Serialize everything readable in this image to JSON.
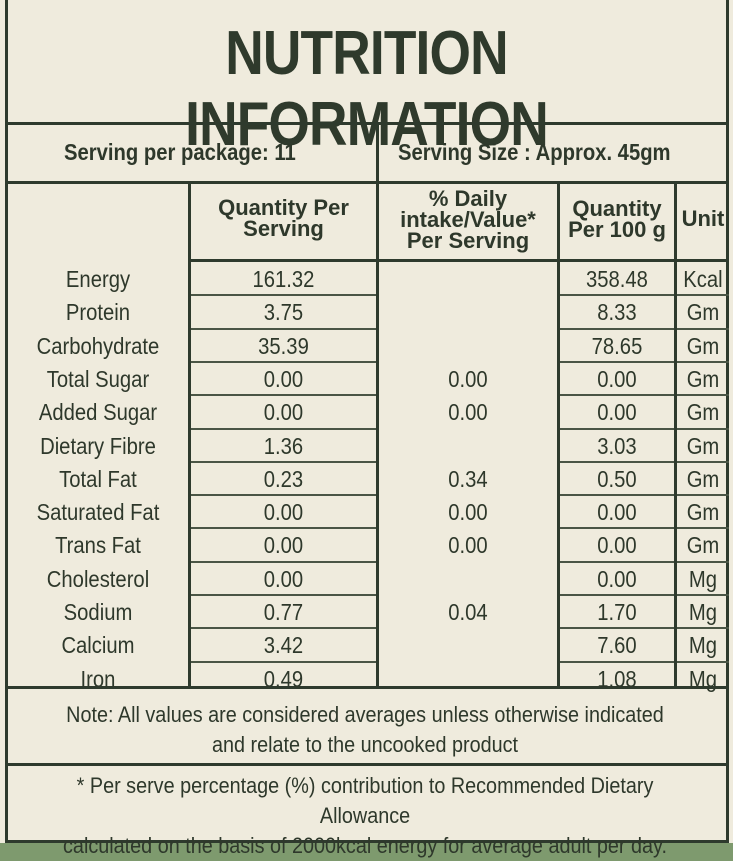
{
  "title": "NUTRITION INFORMATION",
  "serving": {
    "per_package": "Serving per package: 11",
    "size": "Serving Size : Approx. 45gm"
  },
  "columns": {
    "quantity_per_serving": [
      "Quantity Per",
      "Serving"
    ],
    "daily_value": [
      "% Daily",
      "intake/Value*",
      "Per Serving"
    ],
    "per_100g": [
      "Quantity",
      "Per 100 g"
    ],
    "unit": [
      "Unit"
    ]
  },
  "rows": [
    {
      "name": "Energy",
      "per_serving": "161.32",
      "dv": "",
      "per100": "358.48",
      "unit": "Kcal"
    },
    {
      "name": "Protein",
      "per_serving": "3.75",
      "dv": "",
      "per100": "8.33",
      "unit": "Gm"
    },
    {
      "name": "Carbohydrate",
      "per_serving": "35.39",
      "dv": "",
      "per100": "78.65",
      "unit": "Gm"
    },
    {
      "name": "Total Sugar",
      "per_serving": "0.00",
      "dv": "0.00",
      "per100": "0.00",
      "unit": "Gm"
    },
    {
      "name": "Added Sugar",
      "per_serving": "0.00",
      "dv": "0.00",
      "per100": "0.00",
      "unit": "Gm"
    },
    {
      "name": "Dietary Fibre",
      "per_serving": "1.36",
      "dv": "",
      "per100": "3.03",
      "unit": "Gm"
    },
    {
      "name": "Total Fat",
      "per_serving": "0.23",
      "dv": "0.34",
      "per100": "0.50",
      "unit": "Gm"
    },
    {
      "name": "Saturated Fat",
      "per_serving": "0.00",
      "dv": "0.00",
      "per100": "0.00",
      "unit": "Gm"
    },
    {
      "name": "Trans Fat",
      "per_serving": "0.00",
      "dv": "0.00",
      "per100": "0.00",
      "unit": "Gm"
    },
    {
      "name": "Cholesterol",
      "per_serving": "0.00",
      "dv": "",
      "per100": "0.00",
      "unit": "Mg"
    },
    {
      "name": "Sodium",
      "per_serving": "0.77",
      "dv": "0.04",
      "per100": "1.70",
      "unit": "Mg"
    },
    {
      "name": "Calcium",
      "per_serving": "3.42",
      "dv": "",
      "per100": "7.60",
      "unit": "Mg"
    },
    {
      "name": "Iron",
      "per_serving": "0.49",
      "dv": "",
      "per100": "1.08",
      "unit": "Mg"
    }
  ],
  "note": [
    "Note: All values are considered averages unless otherwise indicated",
    "and relate to the uncooked product"
  ],
  "footnote": [
    "* Per serve percentage (%) contribution to Recommended Dietary Allowance",
    "calculated on the basis of 2000kcal energy for average adult per day."
  ]
}
